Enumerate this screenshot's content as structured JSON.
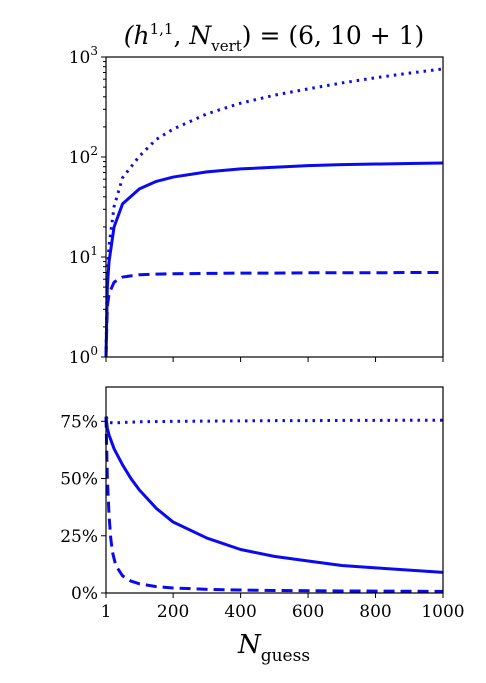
{
  "figure": {
    "title": "(h¹·¹, Nᵥₑᵣₜ) = (6, 10 + 1)",
    "xlabel": "N_guess",
    "xlabel_main": "N",
    "xlabel_sub": "guess",
    "line_color": "#0a0af0"
  },
  "chart_data": [
    {
      "type": "line",
      "title": "(h^{1,1}, N_vert) = (6, 10 + 1)",
      "xlabel": "",
      "ylabel": "",
      "yscale": "log",
      "xlim": [
        1,
        1000
      ],
      "ylim": [
        1,
        1000
      ],
      "grid": false,
      "legend": "none",
      "xticks": [
        1,
        200,
        400,
        600,
        800,
        1000
      ],
      "yticks": [
        {
          "value": 1,
          "base": "10",
          "exp": "0"
        },
        {
          "value": 10,
          "base": "10",
          "exp": "1"
        },
        {
          "value": 100,
          "base": "10",
          "exp": "2"
        },
        {
          "value": 1000,
          "base": "10",
          "exp": "3"
        }
      ],
      "series": [
        {
          "style": "dotted",
          "x": [
            1,
            5,
            10,
            25,
            50,
            100,
            150,
            200,
            300,
            400,
            500,
            600,
            700,
            800,
            900,
            1000
          ],
          "values": [
            1,
            7,
            13,
            32,
            62,
            102,
            150,
            190,
            270,
            345,
            415,
            480,
            550,
            620,
            690,
            760
          ]
        },
        {
          "style": "solid",
          "x": [
            1,
            5,
            10,
            25,
            50,
            100,
            150,
            200,
            300,
            400,
            500,
            600,
            700,
            800,
            900,
            1000
          ],
          "values": [
            1,
            5,
            9,
            20,
            34,
            48,
            57,
            63,
            71,
            76,
            79,
            82,
            84,
            85,
            86,
            87
          ]
        },
        {
          "style": "dashed",
          "x": [
            1,
            5,
            10,
            25,
            50,
            100,
            150,
            200,
            300,
            400,
            500,
            600,
            700,
            800,
            900,
            1000
          ],
          "values": [
            1,
            3.2,
            4.3,
            5.6,
            6.3,
            6.65,
            6.75,
            6.8,
            6.85,
            6.9,
            6.9,
            6.95,
            6.95,
            6.95,
            7.0,
            7.0
          ]
        }
      ]
    },
    {
      "type": "line",
      "title": "",
      "xlabel": "N_guess",
      "ylabel": "",
      "yscale": "linear",
      "xlim": [
        1,
        1000
      ],
      "ylim": [
        0,
        90
      ],
      "grid": false,
      "legend": "none",
      "xticks": [
        1,
        200,
        400,
        600,
        800,
        1000
      ],
      "yticks": [
        {
          "value": 0,
          "label": "0%"
        },
        {
          "value": 25,
          "label": "25%"
        },
        {
          "value": 50,
          "label": "50%"
        },
        {
          "value": 75,
          "label": "75%"
        }
      ],
      "series": [
        {
          "style": "dotted",
          "x": [
            1,
            10,
            25,
            50,
            100,
            200,
            300,
            400,
            500,
            600,
            700,
            800,
            900,
            1000
          ],
          "values": [
            77,
            74.5,
            74.3,
            74.5,
            74.8,
            75.0,
            75.1,
            75.2,
            75.3,
            75.3,
            75.4,
            75.4,
            75.5,
            75.5
          ]
        },
        {
          "style": "solid",
          "x": [
            1,
            5,
            10,
            25,
            50,
            75,
            100,
            150,
            200,
            300,
            400,
            500,
            600,
            700,
            800,
            900,
            1000
          ],
          "values": [
            77,
            72,
            69,
            63,
            56,
            50,
            45,
            37,
            31,
            24,
            19,
            16,
            14,
            12,
            11,
            10,
            9
          ]
        },
        {
          "style": "dashed",
          "x": [
            1,
            5,
            10,
            15,
            20,
            30,
            50,
            75,
            100,
            150,
            200,
            300,
            400,
            500,
            700,
            1000
          ],
          "values": [
            77,
            50,
            34,
            24,
            18,
            12,
            7.5,
            5.2,
            4.0,
            2.8,
            2.2,
            1.6,
            1.3,
            1.1,
            0.9,
            0.7
          ]
        }
      ]
    }
  ]
}
